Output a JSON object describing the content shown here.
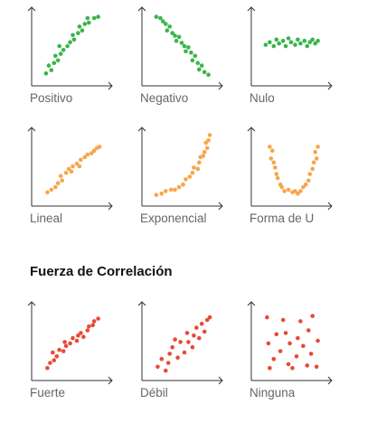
{
  "section_title": "Fuerza de Correlación",
  "colors": {
    "green": "#3ab54a",
    "orange": "#f7a64a",
    "red": "#e84a35",
    "axis": "#333333",
    "label": "#666666"
  },
  "chart_data": [
    {
      "type": "scatter",
      "title": "Positivo",
      "color": "green",
      "xlim": [
        0,
        100
      ],
      "ylim": [
        0,
        100
      ],
      "points": [
        [
          8,
          8
        ],
        [
          16,
          13
        ],
        [
          12,
          20
        ],
        [
          20,
          24
        ],
        [
          26,
          28
        ],
        [
          22,
          35
        ],
        [
          30,
          38
        ],
        [
          34,
          44
        ],
        [
          28,
          50
        ],
        [
          40,
          50
        ],
        [
          44,
          56
        ],
        [
          50,
          60
        ],
        [
          48,
          67
        ],
        [
          56,
          70
        ],
        [
          62,
          74
        ],
        [
          58,
          80
        ],
        [
          66,
          84
        ],
        [
          72,
          86
        ],
        [
          70,
          93
        ],
        [
          80,
          93
        ],
        [
          86,
          95
        ]
      ]
    },
    {
      "type": "scatter",
      "title": "Negativo",
      "color": "green",
      "xlim": [
        0,
        100
      ],
      "ylim": [
        0,
        100
      ],
      "points": [
        [
          8,
          95
        ],
        [
          14,
          93
        ],
        [
          18,
          88
        ],
        [
          22,
          84
        ],
        [
          28,
          80
        ],
        [
          24,
          74
        ],
        [
          32,
          70
        ],
        [
          36,
          66
        ],
        [
          42,
          64
        ],
        [
          38,
          58
        ],
        [
          46,
          55
        ],
        [
          50,
          50
        ],
        [
          56,
          48
        ],
        [
          52,
          42
        ],
        [
          60,
          40
        ],
        [
          66,
          35
        ],
        [
          62,
          28
        ],
        [
          70,
          24
        ],
        [
          76,
          20
        ],
        [
          72,
          14
        ],
        [
          80,
          10
        ],
        [
          86,
          6
        ]
      ]
    },
    {
      "type": "scatter",
      "title": "Nulo",
      "color": "green",
      "xlim": [
        0,
        100
      ],
      "ylim": [
        0,
        100
      ],
      "points": [
        [
          8,
          52
        ],
        [
          14,
          56
        ],
        [
          20,
          50
        ],
        [
          24,
          60
        ],
        [
          28,
          54
        ],
        [
          34,
          58
        ],
        [
          38,
          50
        ],
        [
          42,
          62
        ],
        [
          46,
          56
        ],
        [
          52,
          52
        ],
        [
          56,
          60
        ],
        [
          60,
          54
        ],
        [
          66,
          58
        ],
        [
          70,
          50
        ],
        [
          74,
          56
        ],
        [
          78,
          60
        ],
        [
          82,
          54
        ],
        [
          86,
          58
        ]
      ]
    },
    {
      "type": "scatter",
      "title": "Lineal",
      "color": "orange",
      "xlim": [
        0,
        100
      ],
      "ylim": [
        0,
        100
      ],
      "points": [
        [
          10,
          10
        ],
        [
          16,
          14
        ],
        [
          22,
          18
        ],
        [
          26,
          24
        ],
        [
          32,
          28
        ],
        [
          30,
          35
        ],
        [
          38,
          40
        ],
        [
          42,
          46
        ],
        [
          46,
          42
        ],
        [
          48,
          50
        ],
        [
          54,
          54
        ],
        [
          58,
          50
        ],
        [
          60,
          60
        ],
        [
          66,
          64
        ],
        [
          70,
          68
        ],
        [
          76,
          70
        ],
        [
          80,
          74
        ],
        [
          84,
          78
        ],
        [
          88,
          80
        ]
      ]
    },
    {
      "type": "scatter",
      "title": "Exponencial",
      "color": "orange",
      "xlim": [
        0,
        100
      ],
      "ylim": [
        0,
        100
      ],
      "points": [
        [
          8,
          6
        ],
        [
          16,
          8
        ],
        [
          22,
          12
        ],
        [
          30,
          14
        ],
        [
          36,
          14
        ],
        [
          42,
          18
        ],
        [
          48,
          22
        ],
        [
          52,
          30
        ],
        [
          58,
          34
        ],
        [
          62,
          40
        ],
        [
          64,
          48
        ],
        [
          70,
          46
        ],
        [
          72,
          56
        ],
        [
          74,
          64
        ],
        [
          78,
          66
        ],
        [
          80,
          72
        ],
        [
          84,
          78
        ],
        [
          82,
          86
        ],
        [
          86,
          90
        ],
        [
          88,
          98
        ]
      ]
    },
    {
      "type": "scatter",
      "title": "Forma de U",
      "color": "orange",
      "xlim": [
        0,
        100
      ],
      "ylim": [
        0,
        100
      ],
      "points": [
        [
          14,
          80
        ],
        [
          18,
          74
        ],
        [
          16,
          62
        ],
        [
          20,
          56
        ],
        [
          22,
          48
        ],
        [
          24,
          38
        ],
        [
          26,
          32
        ],
        [
          30,
          22
        ],
        [
          32,
          18
        ],
        [
          36,
          12
        ],
        [
          42,
          14
        ],
        [
          48,
          10
        ],
        [
          52,
          12
        ],
        [
          56,
          8
        ],
        [
          60,
          12
        ],
        [
          64,
          18
        ],
        [
          68,
          22
        ],
        [
          72,
          28
        ],
        [
          74,
          38
        ],
        [
          78,
          46
        ],
        [
          80,
          56
        ],
        [
          84,
          62
        ],
        [
          82,
          72
        ],
        [
          86,
          80
        ]
      ]
    },
    {
      "type": "scatter",
      "title": "Fuerte",
      "color": "red",
      "xlim": [
        0,
        100
      ],
      "ylim": [
        0,
        100
      ],
      "points": [
        [
          10,
          8
        ],
        [
          14,
          16
        ],
        [
          20,
          20
        ],
        [
          24,
          26
        ],
        [
          18,
          32
        ],
        [
          28,
          36
        ],
        [
          34,
          34
        ],
        [
          38,
          42
        ],
        [
          36,
          48
        ],
        [
          44,
          46
        ],
        [
          48,
          54
        ],
        [
          54,
          50
        ],
        [
          56,
          58
        ],
        [
          60,
          62
        ],
        [
          64,
          56
        ],
        [
          70,
          66
        ],
        [
          72,
          72
        ],
        [
          78,
          74
        ],
        [
          80,
          80
        ],
        [
          86,
          84
        ]
      ]
    },
    {
      "type": "scatter",
      "title": "Débil",
      "color": "red",
      "xlim": [
        0,
        100
      ],
      "ylim": [
        0,
        100
      ],
      "points": [
        [
          10,
          10
        ],
        [
          16,
          22
        ],
        [
          22,
          4
        ],
        [
          28,
          30
        ],
        [
          26,
          16
        ],
        [
          32,
          40
        ],
        [
          36,
          52
        ],
        [
          40,
          24
        ],
        [
          44,
          48
        ],
        [
          50,
          32
        ],
        [
          54,
          62
        ],
        [
          56,
          48
        ],
        [
          62,
          40
        ],
        [
          64,
          58
        ],
        [
          68,
          70
        ],
        [
          72,
          54
        ],
        [
          76,
          76
        ],
        [
          80,
          64
        ],
        [
          84,
          82
        ],
        [
          88,
          86
        ]
      ]
    },
    {
      "type": "scatter",
      "title": "Ninguna",
      "color": "red",
      "xlim": [
        0,
        100
      ],
      "ylim": [
        0,
        100
      ],
      "points": [
        [
          10,
          86
        ],
        [
          12,
          46
        ],
        [
          14,
          8
        ],
        [
          20,
          22
        ],
        [
          24,
          60
        ],
        [
          30,
          34
        ],
        [
          34,
          82
        ],
        [
          38,
          62
        ],
        [
          44,
          46
        ],
        [
          42,
          14
        ],
        [
          48,
          8
        ],
        [
          54,
          26
        ],
        [
          56,
          54
        ],
        [
          60,
          80
        ],
        [
          64,
          42
        ],
        [
          70,
          12
        ],
        [
          72,
          66
        ],
        [
          76,
          30
        ],
        [
          78,
          88
        ],
        [
          84,
          10
        ],
        [
          86,
          50
        ]
      ]
    }
  ]
}
